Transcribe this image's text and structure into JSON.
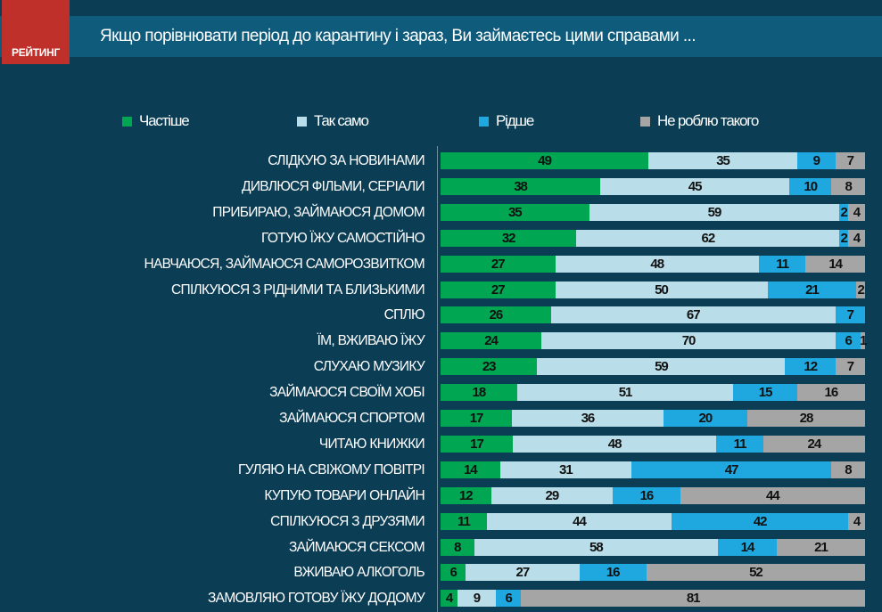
{
  "header": {
    "logo_text": "РЕЙТИНГ",
    "title": "Якщо порівнювати  період до карантину і зараз, Ви займаєтесь цими справами  ..."
  },
  "chart_data": {
    "type": "bar",
    "orientation": "horizontal",
    "stacked": true,
    "title": "Якщо порівнювати  період до карантину і зараз, Ви займаєтесь цими справами  ...",
    "legend_position": "top",
    "categories": [
      "СЛІДКУЮ ЗА НОВИНАМИ",
      "ДИВЛЮСЯ ФІЛЬМИ, СЕРІАЛИ",
      "ПРИБИРАЮ, ЗАЙМАЮСЯ ДОМОМ",
      "ГОТУЮ ЇЖУ САМОСТІЙНО",
      "НАВЧАЮСЯ, ЗАЙМАЮСЯ САМОРОЗВИТКОМ",
      "СПІЛКУЮСЯ З РІДНИМИ ТА БЛИЗЬКИМИ",
      "СПЛЮ",
      "ЇМ, ВЖИВАЮ ЇЖУ",
      "СЛУХАЮ МУЗИКУ",
      "ЗАЙМАЮСЯ СВОЇМ ХОБІ",
      "ЗАЙМАЮСЯ СПОРТОМ",
      "ЧИТАЮ КНИЖКИ",
      "ГУЛЯЮ НА СВІЖОМУ ПОВІТРІ",
      "КУПУЮ ТОВАРИ ОНЛАЙН",
      "СПІЛКУЮСЯ З ДРУЗЯМИ",
      "ЗАЙМАЮСЯ СЕКСОМ",
      "ВЖИВАЮ АЛКОГОЛЬ",
      "ЗАМОВЛЯЮ ГОТОВУ ЇЖУ ДОДОМУ"
    ],
    "series": [
      {
        "name": "Частіше",
        "color": "#00a651",
        "values": [
          49,
          38,
          35,
          32,
          27,
          27,
          26,
          24,
          23,
          18,
          17,
          17,
          14,
          12,
          11,
          8,
          6,
          4
        ]
      },
      {
        "name": "Так само",
        "color": "#b9dee9",
        "values": [
          35,
          45,
          59,
          62,
          48,
          50,
          67,
          70,
          59,
          51,
          36,
          48,
          31,
          29,
          44,
          58,
          27,
          9
        ]
      },
      {
        "name": "Рідше",
        "color": "#1fa8e0",
        "values": [
          9,
          10,
          2,
          2,
          11,
          21,
          7,
          6,
          12,
          15,
          20,
          11,
          47,
          16,
          42,
          14,
          16,
          6
        ]
      },
      {
        "name": "Не роблю такого",
        "color": "#a5a5a5",
        "values": [
          7,
          8,
          4,
          4,
          14,
          2,
          0,
          1,
          7,
          16,
          28,
          24,
          8,
          44,
          4,
          21,
          52,
          81
        ]
      }
    ],
    "xlim": [
      0,
      100
    ]
  }
}
